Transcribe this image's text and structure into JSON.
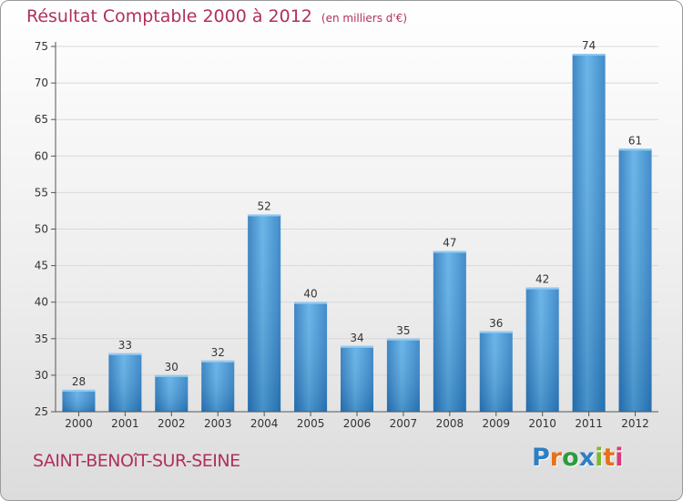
{
  "chart_data": {
    "type": "bar",
    "title": "Résultat Comptable 2000 à 2012",
    "subtitle": "(en milliers d'€)",
    "categories": [
      "2000",
      "2001",
      "2002",
      "2003",
      "2004",
      "2005",
      "2006",
      "2007",
      "2008",
      "2009",
      "2010",
      "2011",
      "2012"
    ],
    "values": [
      28,
      33,
      30,
      32,
      52,
      40,
      34,
      35,
      47,
      36,
      42,
      74,
      61
    ],
    "ylim": [
      25,
      75
    ],
    "yticks": [
      25,
      30,
      35,
      40,
      45,
      50,
      55,
      60,
      65,
      70,
      75
    ],
    "grid": true,
    "bar_color": "#3a8fd0"
  },
  "place_name": "SAINT-BENOîT-SUR-SEINE",
  "logo": {
    "text": "Proxiti",
    "colors": [
      "#2e7fc4",
      "#e8701a",
      "#2e9b3c",
      "#2e7fc4",
      "#7cb82f",
      "#e8701a",
      "#d83a7a"
    ]
  },
  "colors": {
    "title": "#b0305f",
    "axis": "#555555",
    "grid": "#d8d8d8"
  }
}
